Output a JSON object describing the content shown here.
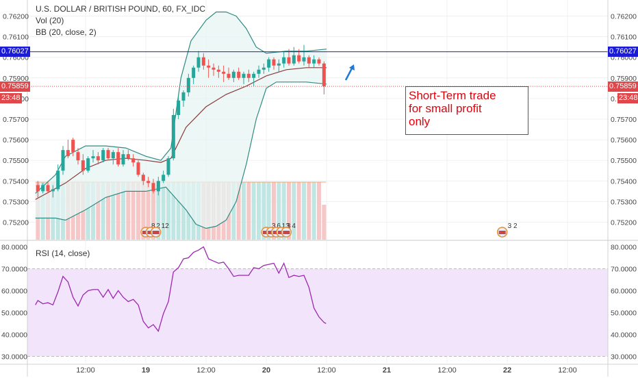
{
  "legend": {
    "symbol": "U.S. DOLLAR / BRITISH POUND, 60, FX_IDC",
    "vol": "Vol (20)",
    "bb": "BB (20, close, 2)",
    "rsi": "RSI (14, close)"
  },
  "annotation": {
    "text": "Short-Term trade\nfor small profit\nonly",
    "color": "#e3000b"
  },
  "price_tags": {
    "hline_value": "0.76027",
    "last_price": "0.75859",
    "countdown": "23:48",
    "hline_color": "#1b1bd6",
    "last_color": "#e0464a",
    "countdown_color": "#e0464a"
  },
  "events": [
    {
      "label": "8",
      "x": 12
    },
    {
      "label": "2",
      "x": 13
    },
    {
      "label": "12",
      "x": 14
    },
    {
      "label": "3",
      "x": 36
    },
    {
      "label": "6",
      "x": 37
    },
    {
      "label": "13",
      "x": 38
    },
    {
      "label": "3",
      "x": 39
    },
    {
      "label": "4",
      "x": 40
    },
    {
      "label": "3 2",
      "x": 83
    }
  ],
  "colors": {
    "up": "#26a69a",
    "down": "#ef5350",
    "bb_band": "#2e8b82",
    "bb_basis": "#8b3a3a",
    "rsi_line": "#9c27b0",
    "rsi_fill": "#f1e4fb"
  },
  "chart_data": [
    {
      "type": "candlestick",
      "title": "U.S. DOLLAR / BRITISH POUND, 60, FX_IDC",
      "x_unit": "hours (0 = 12:00 on the 18th)",
      "x_tick_labels": [
        "12:00",
        "19",
        "12:00",
        "20",
        "12:00",
        "21",
        "12:00",
        "22",
        "12:00"
      ],
      "x_tick_positions": [
        0,
        12,
        24,
        36,
        48,
        60,
        72,
        84,
        96
      ],
      "y_tick_labels": [
        "0.75200",
        "0.75300",
        "0.75400",
        "0.75500",
        "0.75600",
        "0.75700",
        "0.75800",
        "0.75900",
        "0.76000",
        "0.76100",
        "0.76200"
      ],
      "ylim": [
        0.7514,
        0.7624
      ],
      "xlim": [
        -10,
        99
      ],
      "candles": [
        {
          "x": -9.5,
          "o": 0.7538,
          "h": 0.754,
          "l": 0.7532,
          "c": 0.7535
        },
        {
          "x": -8.5,
          "o": 0.7535,
          "h": 0.7539,
          "l": 0.7534,
          "c": 0.7538
        },
        {
          "x": -7.5,
          "o": 0.7538,
          "h": 0.754,
          "l": 0.7534,
          "c": 0.7535
        },
        {
          "x": -6.5,
          "o": 0.7535,
          "h": 0.7538,
          "l": 0.7532,
          "c": 0.7536
        },
        {
          "x": -5.5,
          "o": 0.7536,
          "h": 0.7548,
          "l": 0.7535,
          "c": 0.7545
        },
        {
          "x": -4.5,
          "o": 0.7545,
          "h": 0.7557,
          "l": 0.7543,
          "c": 0.7555
        },
        {
          "x": -3.5,
          "o": 0.7555,
          "h": 0.756,
          "l": 0.7551,
          "c": 0.7552
        },
        {
          "x": -2.5,
          "o": 0.756,
          "h": 0.7561,
          "l": 0.7552,
          "c": 0.7554
        },
        {
          "x": -1.5,
          "o": 0.7554,
          "h": 0.7556,
          "l": 0.7548,
          "c": 0.755
        },
        {
          "x": -0.5,
          "o": 0.755,
          "h": 0.7553,
          "l": 0.7543,
          "c": 0.7545
        },
        {
          "x": 0.5,
          "o": 0.7545,
          "h": 0.7552,
          "l": 0.7544,
          "c": 0.7551
        },
        {
          "x": 1.5,
          "o": 0.7551,
          "h": 0.7555,
          "l": 0.7549,
          "c": 0.7552
        },
        {
          "x": 2.5,
          "o": 0.7552,
          "h": 0.7554,
          "l": 0.7548,
          "c": 0.755
        },
        {
          "x": 3.5,
          "o": 0.755,
          "h": 0.7556,
          "l": 0.7549,
          "c": 0.7555
        },
        {
          "x": 4.5,
          "o": 0.7555,
          "h": 0.7556,
          "l": 0.755,
          "c": 0.7551
        },
        {
          "x": 5.5,
          "o": 0.7551,
          "h": 0.7555,
          "l": 0.7548,
          "c": 0.7554
        },
        {
          "x": 6.5,
          "o": 0.7554,
          "h": 0.7556,
          "l": 0.7547,
          "c": 0.7548
        },
        {
          "x": 7.5,
          "o": 0.7548,
          "h": 0.7555,
          "l": 0.7547,
          "c": 0.7553
        },
        {
          "x": 8.5,
          "o": 0.7553,
          "h": 0.7555,
          "l": 0.755,
          "c": 0.7551
        },
        {
          "x": 9.5,
          "o": 0.7551,
          "h": 0.7553,
          "l": 0.7547,
          "c": 0.7549
        },
        {
          "x": 10.5,
          "o": 0.7549,
          "h": 0.755,
          "l": 0.7542,
          "c": 0.7543
        },
        {
          "x": 11.5,
          "o": 0.7543,
          "h": 0.7544,
          "l": 0.7538,
          "c": 0.754
        },
        {
          "x": 12.5,
          "o": 0.754,
          "h": 0.7542,
          "l": 0.7537,
          "c": 0.7539
        },
        {
          "x": 13.5,
          "o": 0.7539,
          "h": 0.7541,
          "l": 0.7534,
          "c": 0.7535
        },
        {
          "x": 14.5,
          "o": 0.7535,
          "h": 0.7542,
          "l": 0.7533,
          "c": 0.754
        },
        {
          "x": 15.5,
          "o": 0.754,
          "h": 0.7545,
          "l": 0.7539,
          "c": 0.7543
        },
        {
          "x": 16.5,
          "o": 0.7543,
          "h": 0.7552,
          "l": 0.7542,
          "c": 0.7551
        },
        {
          "x": 17.5,
          "o": 0.7551,
          "h": 0.7575,
          "l": 0.755,
          "c": 0.7572
        },
        {
          "x": 18.5,
          "o": 0.7572,
          "h": 0.7581,
          "l": 0.757,
          "c": 0.7579
        },
        {
          "x": 19.5,
          "o": 0.7579,
          "h": 0.7584,
          "l": 0.7576,
          "c": 0.7583
        },
        {
          "x": 20.5,
          "o": 0.7583,
          "h": 0.7592,
          "l": 0.7581,
          "c": 0.759
        },
        {
          "x": 21.5,
          "o": 0.759,
          "h": 0.7596,
          "l": 0.7587,
          "c": 0.7595
        },
        {
          "x": 22.5,
          "o": 0.7595,
          "h": 0.7603,
          "l": 0.7593,
          "c": 0.76
        },
        {
          "x": 23.5,
          "o": 0.76,
          "h": 0.7602,
          "l": 0.7594,
          "c": 0.7596
        },
        {
          "x": 24.5,
          "o": 0.7596,
          "h": 0.7599,
          "l": 0.759,
          "c": 0.7595
        },
        {
          "x": 25.5,
          "o": 0.7595,
          "h": 0.7597,
          "l": 0.7591,
          "c": 0.7594
        },
        {
          "x": 26.5,
          "o": 0.7594,
          "h": 0.7596,
          "l": 0.759,
          "c": 0.7593
        },
        {
          "x": 27.5,
          "o": 0.7593,
          "h": 0.7596,
          "l": 0.7588,
          "c": 0.7592
        },
        {
          "x": 28.5,
          "o": 0.7592,
          "h": 0.7595,
          "l": 0.7589,
          "c": 0.759
        },
        {
          "x": 29.5,
          "o": 0.759,
          "h": 0.7594,
          "l": 0.7588,
          "c": 0.7593
        },
        {
          "x": 30.5,
          "o": 0.7593,
          "h": 0.7595,
          "l": 0.7589,
          "c": 0.759
        },
        {
          "x": 31.5,
          "o": 0.759,
          "h": 0.7593,
          "l": 0.7587,
          "c": 0.7592
        },
        {
          "x": 32.5,
          "o": 0.7592,
          "h": 0.7594,
          "l": 0.7588,
          "c": 0.759
        },
        {
          "x": 33.5,
          "o": 0.759,
          "h": 0.7593,
          "l": 0.7586,
          "c": 0.7592
        },
        {
          "x": 34.5,
          "o": 0.7592,
          "h": 0.7596,
          "l": 0.759,
          "c": 0.7594
        },
        {
          "x": 35.5,
          "o": 0.7594,
          "h": 0.7597,
          "l": 0.7592,
          "c": 0.7595
        },
        {
          "x": 36.5,
          "o": 0.7595,
          "h": 0.76,
          "l": 0.7593,
          "c": 0.7599
        },
        {
          "x": 37.5,
          "o": 0.7599,
          "h": 0.76,
          "l": 0.7594,
          "c": 0.7596
        },
        {
          "x": 38.5,
          "o": 0.7596,
          "h": 0.7599,
          "l": 0.7593,
          "c": 0.7597
        },
        {
          "x": 39.5,
          "o": 0.7597,
          "h": 0.7603,
          "l": 0.7595,
          "c": 0.76
        },
        {
          "x": 40.5,
          "o": 0.76,
          "h": 0.7604,
          "l": 0.7596,
          "c": 0.7597
        },
        {
          "x": 41.5,
          "o": 0.7597,
          "h": 0.7605,
          "l": 0.7596,
          "c": 0.7601
        },
        {
          "x": 42.5,
          "o": 0.7601,
          "h": 0.7604,
          "l": 0.7597,
          "c": 0.7598
        },
        {
          "x": 43.5,
          "o": 0.7598,
          "h": 0.7606,
          "l": 0.7596,
          "c": 0.76
        },
        {
          "x": 44.5,
          "o": 0.76,
          "h": 0.7601,
          "l": 0.7595,
          "c": 0.7597
        },
        {
          "x": 45.5,
          "o": 0.7597,
          "h": 0.7601,
          "l": 0.7595,
          "c": 0.7599
        },
        {
          "x": 46.5,
          "o": 0.7599,
          "h": 0.76,
          "l": 0.7596,
          "c": 0.7597
        },
        {
          "x": 47.5,
          "o": 0.7597,
          "h": 0.7598,
          "l": 0.7582,
          "c": 0.75859
        }
      ],
      "bb_upper": [
        [
          -10,
          0.7534
        ],
        [
          -6,
          0.7543
        ],
        [
          -4,
          0.7552
        ],
        [
          0,
          0.7557
        ],
        [
          4,
          0.7557
        ],
        [
          8,
          0.7556
        ],
        [
          12,
          0.7552
        ],
        [
          15,
          0.755
        ],
        [
          17,
          0.7556
        ],
        [
          19,
          0.759
        ],
        [
          21,
          0.7608
        ],
        [
          24,
          0.7618
        ],
        [
          26,
          0.7622
        ],
        [
          28,
          0.7622
        ],
        [
          30,
          0.762
        ],
        [
          32,
          0.7614
        ],
        [
          34,
          0.7605
        ],
        [
          36,
          0.7602
        ],
        [
          40,
          0.7603
        ],
        [
          44,
          0.7603
        ],
        [
          48,
          0.7604
        ]
      ],
      "bb_middle": [
        [
          -10,
          0.7531
        ],
        [
          -4,
          0.7539
        ],
        [
          0,
          0.7546
        ],
        [
          4,
          0.755
        ],
        [
          8,
          0.7551
        ],
        [
          12,
          0.755
        ],
        [
          15,
          0.7549
        ],
        [
          17,
          0.7551
        ],
        [
          20,
          0.7566
        ],
        [
          24,
          0.7576
        ],
        [
          28,
          0.7582
        ],
        [
          32,
          0.7586
        ],
        [
          36,
          0.7591
        ],
        [
          40,
          0.7594
        ],
        [
          44,
          0.7595
        ],
        [
          48,
          0.7595
        ]
      ],
      "bb_lower": [
        [
          -10,
          0.7522
        ],
        [
          -6,
          0.7522
        ],
        [
          -4,
          0.7521
        ],
        [
          0,
          0.7526
        ],
        [
          4,
          0.7532
        ],
        [
          8,
          0.7535
        ],
        [
          12,
          0.7535
        ],
        [
          16,
          0.7537
        ],
        [
          20,
          0.7526
        ],
        [
          22,
          0.7519
        ],
        [
          24,
          0.7517
        ],
        [
          26,
          0.7518
        ],
        [
          28,
          0.7521
        ],
        [
          30,
          0.753
        ],
        [
          32,
          0.7548
        ],
        [
          34,
          0.757
        ],
        [
          36,
          0.7585
        ],
        [
          38,
          0.7588
        ],
        [
          44,
          0.7588
        ],
        [
          48,
          0.7587
        ]
      ],
      "hline": 0.76027,
      "last_price": 0.75859
    },
    {
      "type": "bar",
      "title": "Vol (20)",
      "note": "volume histogram, relative heights"
    },
    {
      "type": "line",
      "title": "RSI (14, close)",
      "y_tick_labels": [
        "30.0000",
        "40.0000",
        "50.0000",
        "60.0000",
        "70.0000",
        "80.0000"
      ],
      "ylim": [
        28,
        82
      ],
      "bands": [
        30,
        70
      ],
      "x": [
        -10,
        -9.5,
        -8.5,
        -7.5,
        -6.5,
        -5.5,
        -4.5,
        -3.5,
        -2.5,
        -1.5,
        -0.5,
        0.5,
        1.5,
        2.5,
        3.5,
        4.5,
        5.5,
        6.5,
        7.5,
        8.5,
        9.5,
        10.5,
        11.5,
        12.5,
        13.5,
        14.5,
        15.5,
        16.5,
        17.5,
        18.5,
        19.5,
        20.5,
        21.5,
        22.5,
        23.5,
        24.5,
        25.5,
        26.5,
        27.5,
        28.5,
        29.5,
        30.5,
        31.5,
        32.5,
        33.5,
        34.5,
        35.5,
        36.5,
        37.5,
        38.5,
        39.5,
        40.5,
        41.5,
        42.5,
        43.5,
        44.5,
        45.5,
        46.5,
        47.5,
        47.9
      ],
      "values": [
        53.5,
        55.5,
        54.0,
        54.5,
        53.5,
        59.5,
        66.5,
        64.0,
        57.0,
        53.0,
        58.0,
        60.0,
        60.5,
        60.5,
        57.0,
        60.5,
        56.5,
        60.0,
        57.0,
        55.0,
        56.0,
        53.5,
        46.0,
        43.0,
        44.5,
        41.5,
        49.5,
        55.0,
        68.5,
        70.5,
        74.5,
        75.0,
        77.5,
        78.5,
        80.0,
        74.5,
        73.5,
        72.5,
        73.0,
        70.0,
        66.5,
        67.0,
        67.0,
        67.0,
        70.5,
        70.0,
        71.5,
        72.0,
        72.5,
        68.0,
        72.5,
        66.0,
        67.0,
        66.5,
        67.0,
        61.5,
        52.0,
        48.0,
        45.5,
        45.0
      ]
    }
  ]
}
